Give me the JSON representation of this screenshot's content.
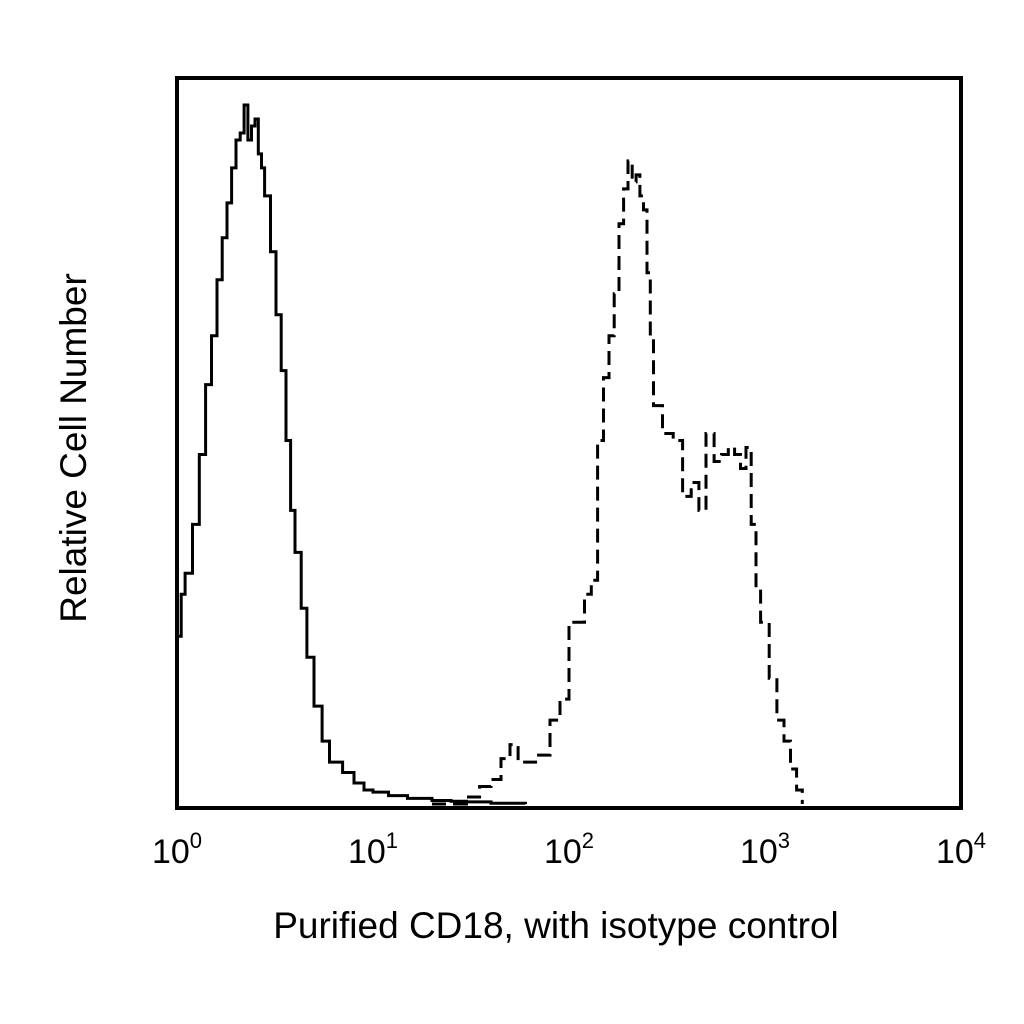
{
  "chart_data": {
    "type": "line",
    "xscale": "log",
    "xlim": [
      1,
      10000
    ],
    "ylim": [
      0,
      1
    ],
    "grid": false,
    "legend": "none",
    "xlabel": "Purified CD18, with isotype control",
    "ylabel": "Relative Cell Number",
    "x_ticks": [
      {
        "base": "10",
        "exp": "0",
        "value": 1
      },
      {
        "base": "10",
        "exp": "1",
        "value": 10
      },
      {
        "base": "10",
        "exp": "2",
        "value": 100
      },
      {
        "base": "10",
        "exp": "3",
        "value": 1000
      },
      {
        "base": "10",
        "exp": "4",
        "value": 10000
      }
    ],
    "colors": {
      "line": "#000000",
      "frame": "#000000",
      "background": "#ffffff"
    },
    "series": [
      {
        "style": "solid",
        "points": [
          [
            1.0,
            0.24
          ],
          [
            1.05,
            0.3
          ],
          [
            1.1,
            0.33
          ],
          [
            1.2,
            0.4
          ],
          [
            1.3,
            0.5
          ],
          [
            1.4,
            0.6
          ],
          [
            1.5,
            0.67
          ],
          [
            1.6,
            0.75
          ],
          [
            1.7,
            0.81
          ],
          [
            1.8,
            0.86
          ],
          [
            1.9,
            0.91
          ],
          [
            2.0,
            0.95
          ],
          [
            2.1,
            0.96
          ],
          [
            2.2,
            1.0
          ],
          [
            2.3,
            0.95
          ],
          [
            2.4,
            0.97
          ],
          [
            2.5,
            0.98
          ],
          [
            2.6,
            0.93
          ],
          [
            2.7,
            0.91
          ],
          [
            2.8,
            0.87
          ],
          [
            3.0,
            0.79
          ],
          [
            3.2,
            0.7
          ],
          [
            3.4,
            0.62
          ],
          [
            3.6,
            0.52
          ],
          [
            3.8,
            0.42
          ],
          [
            4.0,
            0.36
          ],
          [
            4.3,
            0.28
          ],
          [
            4.6,
            0.21
          ],
          [
            5.0,
            0.14
          ],
          [
            5.5,
            0.09
          ],
          [
            6.0,
            0.06
          ],
          [
            7.0,
            0.045
          ],
          [
            8.0,
            0.03
          ],
          [
            9.0,
            0.02
          ],
          [
            10.0,
            0.017
          ],
          [
            12.0,
            0.012
          ],
          [
            15.0,
            0.008
          ],
          [
            20.0,
            0.005
          ],
          [
            25.0,
            0.004
          ],
          [
            30.0,
            0.003
          ],
          [
            40.0,
            0.001
          ],
          [
            60.0,
            0.0
          ]
        ]
      },
      {
        "style": "dashed",
        "points": [
          [
            20.0,
            0.0
          ],
          [
            30.0,
            0.01
          ],
          [
            35.0,
            0.025
          ],
          [
            40.0,
            0.035
          ],
          [
            45.0,
            0.065
          ],
          [
            50.0,
            0.085
          ],
          [
            55.0,
            0.06
          ],
          [
            60.0,
            0.06
          ],
          [
            70.0,
            0.07
          ],
          [
            80.0,
            0.12
          ],
          [
            90.0,
            0.15
          ],
          [
            100.0,
            0.26
          ],
          [
            120.0,
            0.3
          ],
          [
            130.0,
            0.32
          ],
          [
            140.0,
            0.52
          ],
          [
            150.0,
            0.61
          ],
          [
            160.0,
            0.67
          ],
          [
            170.0,
            0.73
          ],
          [
            180.0,
            0.83
          ],
          [
            190.0,
            0.88
          ],
          [
            200.0,
            0.92
          ],
          [
            210.0,
            0.89
          ],
          [
            220.0,
            0.9
          ],
          [
            230.0,
            0.87
          ],
          [
            240.0,
            0.85
          ],
          [
            250.0,
            0.76
          ],
          [
            260.0,
            0.67
          ],
          [
            270.0,
            0.57
          ],
          [
            300.0,
            0.53
          ],
          [
            340.0,
            0.52
          ],
          [
            380.0,
            0.44
          ],
          [
            420.0,
            0.46
          ],
          [
            460.0,
            0.42
          ],
          [
            500.0,
            0.53
          ],
          [
            550.0,
            0.49
          ],
          [
            600.0,
            0.5
          ],
          [
            650.0,
            0.51
          ],
          [
            700.0,
            0.5
          ],
          [
            750.0,
            0.48
          ],
          [
            800.0,
            0.51
          ],
          [
            850.0,
            0.4
          ],
          [
            900.0,
            0.31
          ],
          [
            950.0,
            0.26
          ],
          [
            1050.0,
            0.18
          ],
          [
            1150.0,
            0.12
          ],
          [
            1250.0,
            0.09
          ],
          [
            1350.0,
            0.05
          ],
          [
            1450.0,
            0.02
          ],
          [
            1550.0,
            0.0
          ]
        ]
      }
    ]
  }
}
